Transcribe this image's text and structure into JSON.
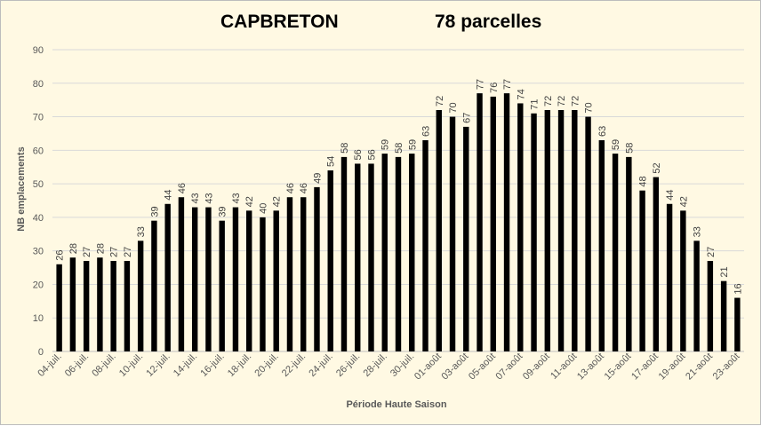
{
  "chart_data": {
    "type": "bar",
    "title": "CAPBRETON",
    "subtitle": "78 parcelles",
    "xlabel": "Période Haute Saison",
    "ylabel": "NB emplacements",
    "ylim": [
      0,
      90
    ],
    "yticks": [
      0,
      10,
      20,
      30,
      40,
      50,
      60,
      70,
      80,
      90
    ],
    "grid": true,
    "legend": "none",
    "bar_color": "#000000",
    "grid_color": "#d9d9d9",
    "background_color": "#fff9e3",
    "categories": [
      "04-juil.",
      "05-juil.",
      "06-juil.",
      "07-juil.",
      "08-juil.",
      "09-juil.",
      "10-juil.",
      "11-juil.",
      "12-juil.",
      "13-juil.",
      "14-juil.",
      "15-juil.",
      "16-juil.",
      "17-juil.",
      "18-juil.",
      "19-juil.",
      "20-juil.",
      "21-juil.",
      "22-juil.",
      "23-juil.",
      "24-juil.",
      "25-juil.",
      "26-juil.",
      "27-juil.",
      "28-juil.",
      "29-juil.",
      "30-juil.",
      "31-juil.",
      "01-août",
      "02-août",
      "03-août",
      "04-août",
      "05-août",
      "06-août",
      "07-août",
      "08-août",
      "09-août",
      "10-août",
      "11-août",
      "12-août",
      "13-août",
      "14-août",
      "15-août",
      "16-août",
      "17-août",
      "18-août",
      "19-août",
      "20-août",
      "21-août",
      "22-août",
      "23-août"
    ],
    "values": [
      26,
      28,
      27,
      28,
      27,
      27,
      33,
      39,
      44,
      46,
      43,
      43,
      39,
      43,
      42,
      40,
      42,
      46,
      46,
      49,
      54,
      58,
      56,
      56,
      59,
      58,
      59,
      63,
      72,
      70,
      67,
      77,
      76,
      77,
      74,
      71,
      72,
      72,
      72,
      70,
      63,
      59,
      58,
      48,
      52,
      44,
      42,
      33,
      27,
      21,
      16
    ],
    "shown_tick_labels": [
      "04-juil.",
      "06-juil.",
      "08-juil.",
      "10-juil.",
      "12-juil.",
      "14-juil.",
      "16-juil.",
      "18-juil.",
      "20-juil.",
      "22-juil.",
      "24-juil.",
      "26-juil.",
      "28-juil.",
      "30-juil.",
      "01-août",
      "03-août",
      "05-août",
      "07-août",
      "09-août",
      "11-août",
      "13-août",
      "15-août",
      "17-août",
      "19-août",
      "21-août",
      "23-août"
    ]
  }
}
